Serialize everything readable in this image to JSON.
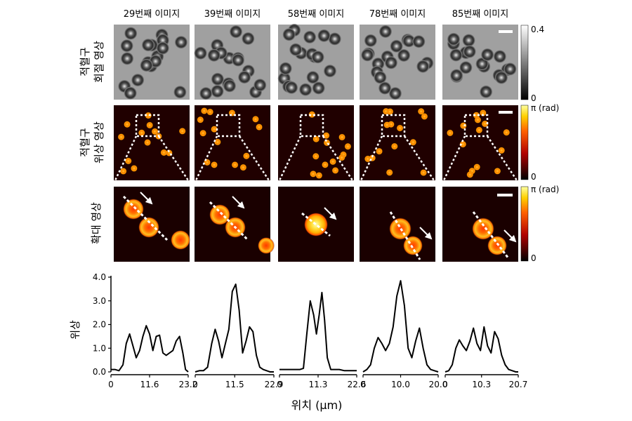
{
  "columns": [
    "29번째 이미지",
    "39번째 이미지",
    "58번째 이미지",
    "78번째 이미지",
    "85번째 이미지"
  ],
  "rows": {
    "bright": {
      "label_line1": "적혈구",
      "label_line2": "회절 영상",
      "cbar_top": "0.4",
      "cbar_bottom": "0"
    },
    "phase": {
      "label_line1": "적혈구",
      "label_line2": "위상 영상",
      "cbar_top": "π (rad)",
      "cbar_bottom": "0"
    },
    "zoom": {
      "label": "확대 영상",
      "cbar_top": "π (rad)",
      "cbar_bottom": "0"
    }
  },
  "chart_data": {
    "type": "line",
    "ylabel": "위상",
    "xlabel": "위치 (μm)",
    "ylim": [
      0,
      4.0
    ],
    "yticks": [
      "0.0",
      "1.0",
      "2.0",
      "3.0",
      "4.0"
    ],
    "panels": [
      {
        "xticks": [
          "0",
          "11.6",
          "23.2"
        ],
        "xmax": 23.2,
        "x": [
          0,
          1.2,
          2.4,
          3.6,
          4.6,
          5.6,
          6.6,
          7.6,
          8.6,
          9.6,
          10.6,
          11.6,
          12.6,
          13.6,
          14.6,
          15.6,
          16.6,
          17.6,
          18.6,
          19.6,
          20.6,
          21.6,
          22.4,
          23.2
        ],
        "y": [
          0.1,
          0.1,
          0.05,
          0.3,
          1.2,
          1.6,
          1.1,
          0.6,
          0.9,
          1.5,
          1.95,
          1.6,
          0.9,
          1.5,
          1.55,
          0.8,
          0.7,
          0.8,
          0.9,
          1.3,
          1.5,
          0.8,
          0.1,
          0.0
        ]
      },
      {
        "xticks": [
          "0",
          "11.5",
          "22.9"
        ],
        "xmax": 22.9,
        "x": [
          0,
          1.2,
          2.4,
          3.6,
          4.8,
          5.8,
          6.8,
          7.8,
          8.8,
          9.8,
          10.8,
          11.8,
          12.8,
          13.8,
          14.8,
          15.8,
          16.8,
          17.8,
          18.8,
          19.8,
          20.8,
          21.8,
          22.9
        ],
        "y": [
          0.0,
          0.05,
          0.05,
          0.2,
          1.2,
          1.8,
          1.3,
          0.6,
          1.2,
          1.8,
          3.4,
          3.7,
          2.6,
          0.8,
          1.3,
          1.9,
          1.7,
          0.7,
          0.2,
          0.1,
          0.05,
          0.0,
          0.0
        ]
      },
      {
        "xticks": [
          "0",
          "11.3",
          "22.6"
        ],
        "xmax": 22.6,
        "x": [
          0,
          1.5,
          3.0,
          4.5,
          6.0,
          7.0,
          8.0,
          9.0,
          10.0,
          10.8,
          11.6,
          12.4,
          13.2,
          14.0,
          15.0,
          16.0,
          17.5,
          19.0,
          20.5,
          22.6
        ],
        "y": [
          0.1,
          0.1,
          0.1,
          0.1,
          0.1,
          0.15,
          1.6,
          3.0,
          2.4,
          1.6,
          2.4,
          3.35,
          2.2,
          0.6,
          0.1,
          0.1,
          0.1,
          0.05,
          0.05,
          0.05
        ]
      },
      {
        "xticks": [
          "0",
          "10.0",
          "20.0"
        ],
        "xmax": 20.0,
        "x": [
          0,
          1.0,
          2.0,
          3.0,
          4.0,
          5.0,
          6.0,
          7.0,
          8.0,
          9.0,
          10.0,
          11.0,
          12.0,
          13.0,
          14.0,
          15.0,
          16.0,
          17.0,
          18.0,
          19.0,
          20.0
        ],
        "y": [
          0.0,
          0.1,
          0.3,
          1.0,
          1.45,
          1.2,
          0.9,
          1.2,
          1.9,
          3.2,
          3.85,
          2.8,
          1.0,
          0.6,
          1.3,
          1.85,
          1.0,
          0.3,
          0.1,
          0.05,
          0.0
        ]
      },
      {
        "xticks": [
          "0",
          "10.3",
          "20.7"
        ],
        "xmax": 20.7,
        "x": [
          0,
          1.0,
          2.0,
          3.0,
          4.0,
          5.0,
          6.0,
          7.0,
          8.0,
          9.0,
          10.0,
          11.0,
          12.0,
          13.0,
          14.0,
          15.0,
          16.0,
          17.0,
          18.0,
          19.0,
          20.0,
          20.7
        ],
        "y": [
          0.0,
          0.05,
          0.3,
          1.0,
          1.35,
          1.1,
          0.9,
          1.3,
          1.85,
          1.2,
          0.9,
          1.9,
          1.1,
          0.8,
          1.7,
          1.4,
          0.7,
          0.3,
          0.1,
          0.05,
          0.0,
          0.0
        ]
      }
    ]
  },
  "colors": {
    "panel_bright_bg": "#9a9a9a",
    "phase_bg": "#1a0000",
    "cell_hot": "#ffdd33",
    "cell_warm": "#ff6a00",
    "cell_edge": "#c01800"
  }
}
